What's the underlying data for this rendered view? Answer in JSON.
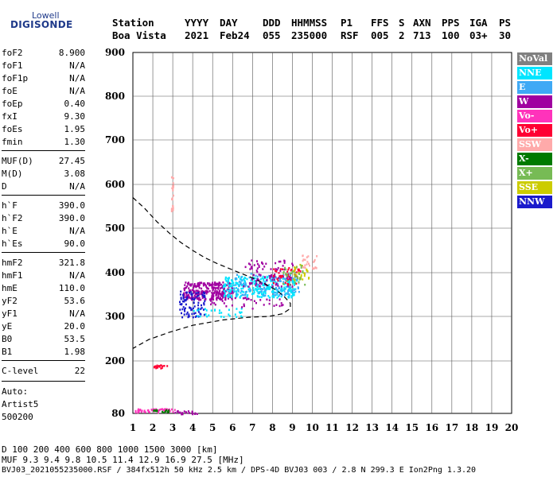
{
  "logo": {
    "top": "Lowell",
    "main": "DIGISONDE"
  },
  "header": {
    "row1": [
      "Station",
      "YYYY",
      "DAY",
      "DDD",
      "HHMMSS",
      "P1",
      "FFS",
      "S",
      "AXN",
      "PPS",
      "IGA",
      "PS"
    ],
    "row2": [
      "Boa Vista",
      "2021",
      "Feb24",
      "055",
      "235000",
      "RSF",
      "005",
      "2",
      "713",
      "100",
      "03+",
      "30"
    ]
  },
  "params": [
    {
      "k": "foF2",
      "v": "8.900"
    },
    {
      "k": "foF1",
      "v": "N/A"
    },
    {
      "k": "foF1p",
      "v": "N/A"
    },
    {
      "k": "foE",
      "v": "N/A"
    },
    {
      "k": "foEp",
      "v": "0.40"
    },
    {
      "k": "fxI",
      "v": "9.30"
    },
    {
      "k": "foEs",
      "v": "1.95"
    },
    {
      "k": "fmin",
      "v": "1.30"
    },
    {
      "k": "MUF(D)",
      "v": "27.45"
    },
    {
      "k": "M(D)",
      "v": "3.08"
    },
    {
      "k": "D",
      "v": "N/A"
    },
    {
      "k": "h`F",
      "v": "390.0"
    },
    {
      "k": "h`F2",
      "v": "390.0"
    },
    {
      "k": "h`E",
      "v": "N/A"
    },
    {
      "k": "h`Es",
      "v": "90.0"
    },
    {
      "k": "hmF2",
      "v": "321.8"
    },
    {
      "k": "hmF1",
      "v": "N/A"
    },
    {
      "k": "hmE",
      "v": "110.0"
    },
    {
      "k": "yF2",
      "v": "53.6"
    },
    {
      "k": "yF1",
      "v": "N/A"
    },
    {
      "k": "yE",
      "v": "20.0"
    },
    {
      "k": "B0",
      "v": "53.5"
    },
    {
      "k": "B1",
      "v": "1.98"
    },
    {
      "k": "C-level",
      "v": "22"
    }
  ],
  "autoscale": {
    "line1": "Auto:",
    "line2": "Artist5",
    "line3": "500200"
  },
  "legend": [
    {
      "label": "NoVal",
      "color": "#808080"
    },
    {
      "label": "NNE",
      "color": "#00e5ff"
    },
    {
      "label": "E",
      "color": "#3fa9f5"
    },
    {
      "label": "W",
      "color": "#a000a0"
    },
    {
      "label": "Vo-",
      "color": "#ff33bb"
    },
    {
      "label": "Vo+",
      "color": "#ff0033"
    },
    {
      "label": "SSW",
      "color": "#ffaaaa"
    },
    {
      "label": "X-",
      "color": "#007a00"
    },
    {
      "label": "X+",
      "color": "#77bb55"
    },
    {
      "label": "SSE",
      "color": "#cccc00"
    },
    {
      "label": "NNW",
      "color": "#1a1acc"
    }
  ],
  "footer": {
    "d_row": "D     100  200  400  600  800 1000 1500 3000 [km]",
    "muf_row": "MUF   9.3  9.4  9.8 10.5 11.4 12.9 16.9 27.5 [MHz]",
    "file_row": "BVJ03_2021055235000.RSF / 384fx512h 50 kHz 2.5 km / DPS-4D BVJ03 003 / 2.8 N 299.3 E  Ion2Png 1.3.20"
  },
  "chart_data": {
    "type": "scatter",
    "xlim": [
      1,
      20
    ],
    "ylim": [
      80,
      900
    ],
    "xticks": [
      "1",
      "2",
      "3",
      "4",
      "5",
      "6",
      "7",
      "8",
      "9",
      "10",
      "11",
      "12",
      "13",
      "14",
      "15",
      "16",
      "17",
      "18",
      "19",
      "20"
    ],
    "yticks": [
      "80",
      "200",
      "300",
      "400",
      "500",
      "600",
      "700",
      "800",
      "900"
    ],
    "grid": true,
    "profile": {
      "style": "dashed",
      "x": [
        1.0,
        1.6,
        2.2,
        2.8,
        3.4,
        4.0,
        4.6,
        5.2,
        5.8,
        6.4,
        7.0,
        7.6,
        8.2,
        8.6,
        8.9,
        8.9,
        8.5,
        7.8,
        6.8,
        5.5,
        4.0,
        2.8,
        1.8,
        1.0
      ],
      "y": [
        570,
        545,
        515,
        490,
        468,
        450,
        434,
        421,
        410,
        399,
        388,
        375,
        360,
        345,
        330,
        318,
        306,
        300,
        298,
        292,
        280,
        264,
        248,
        228
      ]
    },
    "echo_regions": [
      {
        "class": "W",
        "x": [
          3.5,
          6.0
        ],
        "y": [
          340,
          380
        ],
        "n": 280
      },
      {
        "class": "NNE",
        "x": [
          5.5,
          9.2
        ],
        "y": [
          345,
          395
        ],
        "n": 320
      },
      {
        "class": "E",
        "x": [
          6.0,
          9.3
        ],
        "y": [
          350,
          400
        ],
        "n": 120
      },
      {
        "class": "W",
        "x": [
          6.5,
          9.0
        ],
        "y": [
          370,
          430
        ],
        "n": 90
      },
      {
        "class": "NNW",
        "x": [
          3.3,
          4.6
        ],
        "y": [
          300,
          360
        ],
        "n": 90
      },
      {
        "class": "Vo+",
        "x": [
          8.0,
          9.4
        ],
        "y": [
          375,
          415
        ],
        "n": 40
      },
      {
        "class": "SSE",
        "x": [
          9.0,
          9.8
        ],
        "y": [
          380,
          420
        ],
        "n": 30
      },
      {
        "class": "X+",
        "x": [
          8.5,
          9.6
        ],
        "y": [
          370,
          420
        ],
        "n": 30
      },
      {
        "class": "SSW",
        "x": [
          9.4,
          10.2
        ],
        "y": [
          410,
          445
        ],
        "n": 25
      },
      {
        "class": "Vo+",
        "x": [
          2.0,
          2.7
        ],
        "y": [
          185,
          192
        ],
        "n": 20
      },
      {
        "class": "Vo-",
        "x": [
          1.1,
          3.1
        ],
        "y": [
          84,
          92
        ],
        "n": 50
      },
      {
        "class": "X-",
        "x": [
          2.0,
          2.8
        ],
        "y": [
          84,
          90
        ],
        "n": 15
      },
      {
        "class": "W",
        "x": [
          3.0,
          4.2
        ],
        "y": [
          80,
          88
        ],
        "n": 20
      },
      {
        "class": "SSW",
        "x": [
          2.9,
          3.0
        ],
        "y": [
          540,
          620
        ],
        "n": 22
      },
      {
        "class": "NNE",
        "x": [
          4.0,
          6.5
        ],
        "y": [
          300,
          320
        ],
        "n": 30
      },
      {
        "class": "W",
        "x": [
          4.6,
          8.5
        ],
        "y": [
          320,
          345
        ],
        "n": 40
      }
    ]
  }
}
